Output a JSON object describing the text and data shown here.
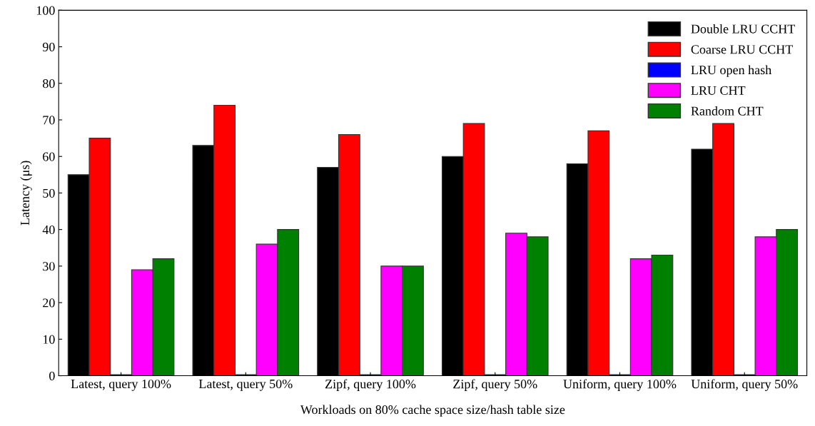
{
  "chart_data": {
    "type": "bar",
    "xlabel": "Workloads on 80% cache space size/hash table size",
    "ylabel": "Latency (μs)",
    "categories": [
      "Latest, query 100%",
      "Latest, query 50%",
      "Zipf, query 100%",
      "Zipf, query 50%",
      "Uniform, query 100%",
      "Uniform, query 50%"
    ],
    "series": [
      {
        "name": "Double LRU CCHT",
        "color": "#000000",
        "values": [
          55,
          63,
          57,
          60,
          58,
          62
        ]
      },
      {
        "name": "Coarse LRU CCHT",
        "color": "#ff0000",
        "values": [
          65,
          74,
          66,
          69,
          67,
          69
        ]
      },
      {
        "name": "LRU open hash",
        "color": "#0000ff",
        "values": [
          0.3,
          0.3,
          0.3,
          0.3,
          0.3,
          0.3
        ]
      },
      {
        "name": "LRU CHT",
        "color": "#ff00ff",
        "values": [
          29,
          36,
          30,
          39,
          32,
          38
        ]
      },
      {
        "name": "Random CHT",
        "color": "#008000",
        "values": [
          32,
          40,
          30,
          38,
          33,
          40
        ]
      }
    ],
    "ylim": [
      0,
      100
    ],
    "yticks": [
      0,
      10,
      20,
      30,
      40,
      50,
      60,
      70,
      80,
      90,
      100
    ],
    "grid": false,
    "legend": "top right"
  }
}
